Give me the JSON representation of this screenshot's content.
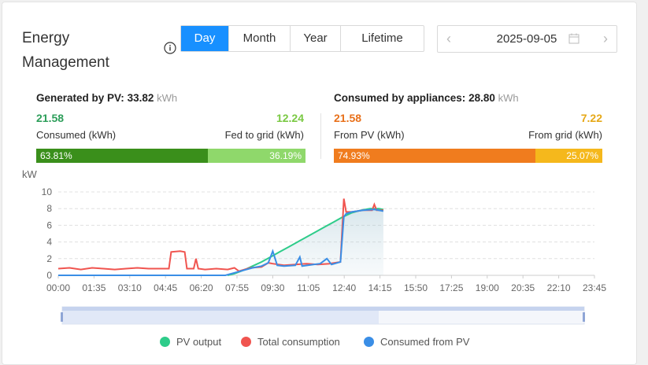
{
  "header": {
    "title": "Energy Management"
  },
  "tabs": [
    {
      "label": "Day",
      "active": true
    },
    {
      "label": "Month",
      "active": false
    },
    {
      "label": "Year",
      "active": false
    },
    {
      "label": "Lifetime",
      "active": false
    }
  ],
  "date_picker": {
    "value": "2025-09-05",
    "prev_icon": "chevron-left-icon",
    "next_icon": "chevron-right-icon",
    "calendar_icon": "calendar-icon"
  },
  "generated": {
    "label": "Generated by PV:",
    "value": "33.82",
    "unit": "kWh",
    "consumed_value": "21.58",
    "consumed_label": "Consumed (kWh)",
    "fed_value": "12.24",
    "fed_label": "Fed to grid (kWh)",
    "consumed_pct_label": "63.81%",
    "fed_pct_label": "36.19%",
    "consumed_fraction": 0.6381,
    "colors": {
      "consumed": "#3a8f1b",
      "fed": "#8fd86b",
      "consumed_text": "#2d9e5a",
      "fed_text": "#7ac943"
    }
  },
  "consumed": {
    "label": "Consumed by appliances:",
    "value": "28.80",
    "unit": "kWh",
    "pv_value": "21.58",
    "pv_label": "From PV (kWh)",
    "grid_value": "7.22",
    "grid_label": "From grid (kWh)",
    "pv_pct_label": "74.93%",
    "grid_pct_label": "25.07%",
    "pv_fraction": 0.7493,
    "colors": {
      "pv": "#f07c1e",
      "grid": "#f5b81c",
      "pv_text": "#e8701a",
      "grid_text": "#e6a817"
    }
  },
  "chart_data": {
    "type": "line",
    "ylabel": "kW",
    "ylim": [
      0,
      10
    ],
    "yticks": [
      "0",
      "2",
      "4",
      "6",
      "8",
      "10"
    ],
    "xticks": [
      "00:00",
      "01:35",
      "03:10",
      "04:45",
      "06:20",
      "07:55",
      "09:30",
      "11:05",
      "12:40",
      "14:15",
      "15:50",
      "17:25",
      "19:00",
      "20:35",
      "22:10",
      "23:45"
    ],
    "grid": true,
    "legend_position": "bottom",
    "series": [
      {
        "name": "PV output",
        "color": "#2ecc8a",
        "points": [
          [
            7.5,
            0
          ],
          [
            7.8,
            0.2
          ],
          [
            8.2,
            0.6
          ],
          [
            8.6,
            1.1
          ],
          [
            9.0,
            1.6
          ],
          [
            9.4,
            2.2
          ],
          [
            9.8,
            2.8
          ],
          [
            10.2,
            3.4
          ],
          [
            10.6,
            4.0
          ],
          [
            11.0,
            4.6
          ],
          [
            11.4,
            5.2
          ],
          [
            11.8,
            5.8
          ],
          [
            12.2,
            6.4
          ],
          [
            12.6,
            7.0
          ],
          [
            13.0,
            7.5
          ],
          [
            13.4,
            7.8
          ],
          [
            13.8,
            8.0
          ],
          [
            14.2,
            8.0
          ],
          [
            14.4,
            7.9
          ]
        ]
      },
      {
        "name": "Total consumption",
        "color": "#f0544f",
        "points": [
          [
            0,
            0.8
          ],
          [
            0.5,
            0.9
          ],
          [
            1.0,
            0.7
          ],
          [
            1.5,
            0.9
          ],
          [
            2.0,
            0.8
          ],
          [
            2.5,
            0.7
          ],
          [
            3.0,
            0.8
          ],
          [
            3.5,
            0.9
          ],
          [
            4.0,
            0.8
          ],
          [
            4.5,
            0.8
          ],
          [
            4.9,
            0.8
          ],
          [
            5.0,
            2.8
          ],
          [
            5.4,
            2.9
          ],
          [
            5.6,
            2.8
          ],
          [
            5.7,
            0.8
          ],
          [
            6.0,
            0.8
          ],
          [
            6.1,
            2.0
          ],
          [
            6.2,
            0.8
          ],
          [
            6.5,
            0.7
          ],
          [
            7.0,
            0.8
          ],
          [
            7.5,
            0.7
          ],
          [
            7.8,
            0.9
          ],
          [
            8.0,
            0.5
          ],
          [
            8.5,
            0.9
          ],
          [
            9.0,
            1.0
          ],
          [
            9.3,
            1.5
          ],
          [
            9.5,
            1.4
          ],
          [
            10.0,
            1.2
          ],
          [
            10.5,
            1.3
          ],
          [
            11.0,
            1.4
          ],
          [
            11.5,
            1.3
          ],
          [
            12.0,
            1.4
          ],
          [
            12.5,
            1.6
          ],
          [
            12.65,
            9.2
          ],
          [
            12.75,
            7.6
          ],
          [
            13.0,
            7.6
          ],
          [
            13.5,
            7.8
          ],
          [
            13.9,
            7.8
          ],
          [
            14.0,
            8.5
          ],
          [
            14.1,
            7.8
          ],
          [
            14.4,
            7.8
          ]
        ]
      },
      {
        "name": "Consumed from PV",
        "color": "#3a8ee6",
        "points": [
          [
            0,
            0
          ],
          [
            7.4,
            0
          ],
          [
            7.8,
            0.3
          ],
          [
            8.2,
            0.6
          ],
          [
            8.6,
            0.9
          ],
          [
            9.0,
            1.1
          ],
          [
            9.3,
            1.5
          ],
          [
            9.5,
            2.9
          ],
          [
            9.7,
            1.2
          ],
          [
            10.0,
            1.1
          ],
          [
            10.5,
            1.2
          ],
          [
            10.7,
            2.2
          ],
          [
            10.8,
            1.1
          ],
          [
            11.3,
            1.3
          ],
          [
            11.6,
            1.4
          ],
          [
            11.9,
            2.0
          ],
          [
            12.1,
            1.3
          ],
          [
            12.5,
            1.6
          ],
          [
            12.65,
            7.0
          ],
          [
            12.75,
            7.4
          ],
          [
            13.0,
            7.6
          ],
          [
            13.5,
            7.8
          ],
          [
            14.0,
            7.9
          ],
          [
            14.4,
            7.7
          ]
        ]
      }
    ]
  }
}
